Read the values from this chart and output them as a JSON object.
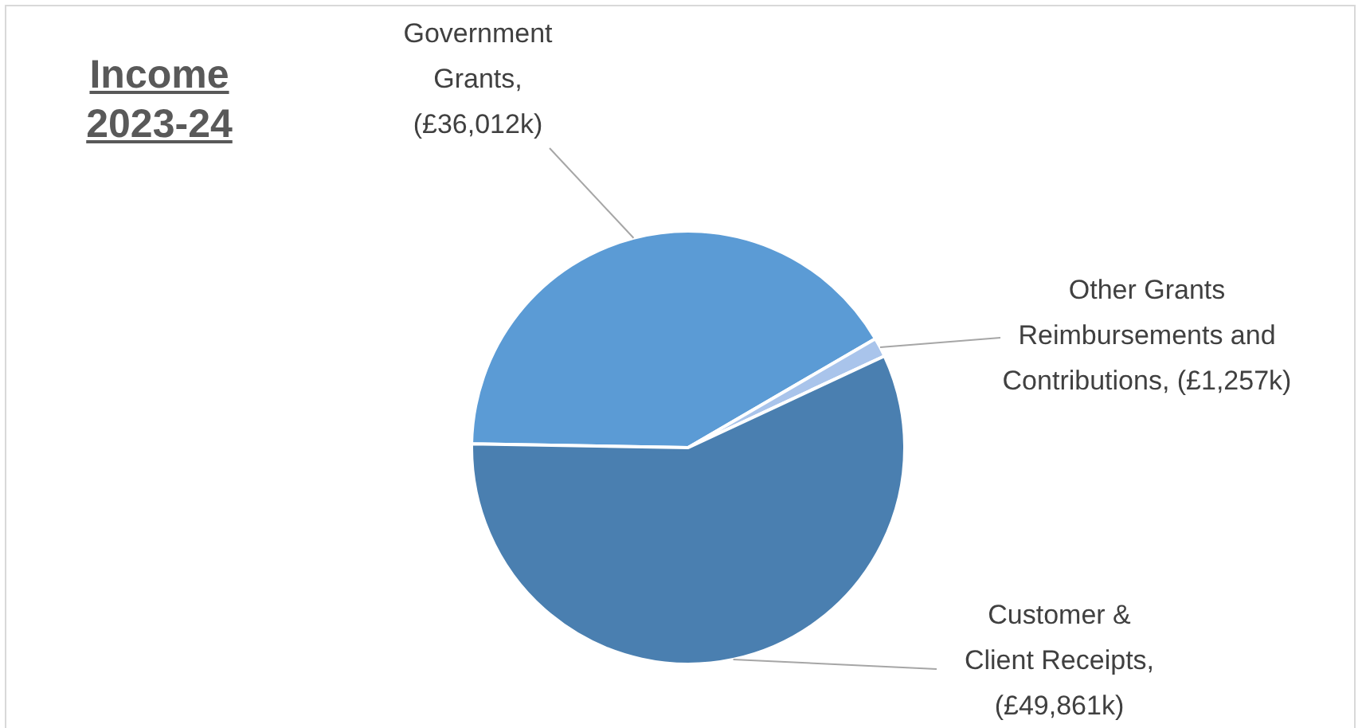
{
  "chart_data": {
    "type": "pie",
    "title": "Income 2023-24",
    "categories": [
      "Government Grants",
      "Other Grants Reimbursements and Contributions",
      "Customer & Client Receipts"
    ],
    "values": [
      36012,
      1257,
      49861
    ],
    "value_labels": [
      ", (£36,012k)",
      ", (£1,257k)",
      ", (£49,861k)"
    ],
    "colors": [
      "#5b9bd5",
      "#a9c4eb",
      "#4a7fb0"
    ],
    "legend": false
  }
}
